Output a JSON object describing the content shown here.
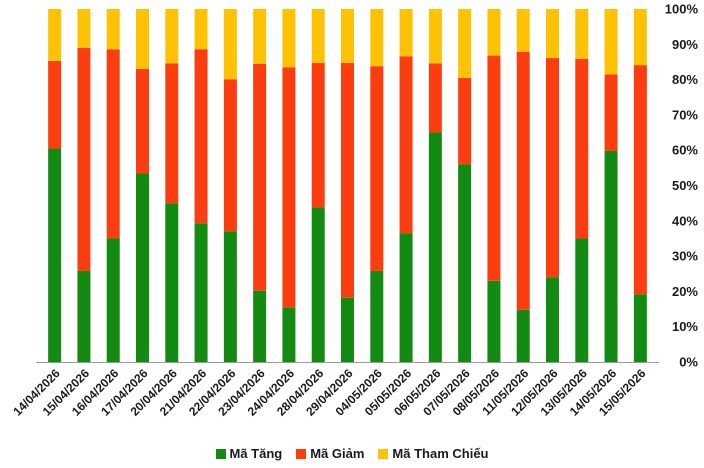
{
  "colors": {
    "tang": "#138a12",
    "giam": "#fc3d0f",
    "tham_chieu": "#fdc203"
  },
  "chart_data": {
    "type": "bar",
    "stacked": true,
    "percent": true,
    "categories": [
      "14/04/2026",
      "15/04/2026",
      "16/04/2026",
      "17/04/2026",
      "20/04/2026",
      "21/04/2026",
      "22/04/2026",
      "23/04/2026",
      "24/04/2026",
      "28/04/2026",
      "29/04/2026",
      "04/05/2026",
      "05/05/2026",
      "06/05/2026",
      "07/05/2026",
      "08/05/2026",
      "11/05/2026",
      "12/05/2026",
      "13/05/2026",
      "14/05/2026",
      "15/05/2026"
    ],
    "series": [
      {
        "name": "Mã Tăng",
        "color": "#138a12",
        "values": [
          60.5,
          25.8,
          35.0,
          53.4,
          45.0,
          39.3,
          37.0,
          20.2,
          15.5,
          43.8,
          18.2,
          25.8,
          36.5,
          65.0,
          56.0,
          23.0,
          14.8,
          24.0,
          35.0,
          59.8,
          19.2
        ]
      },
      {
        "name": "Mã Giảm",
        "color": "#fc3d0f",
        "values": [
          24.8,
          63.2,
          53.6,
          29.6,
          39.6,
          49.3,
          43.1,
          64.3,
          68.0,
          40.9,
          66.5,
          58.0,
          50.1,
          19.6,
          24.5,
          63.8,
          73.1,
          62.1,
          50.9,
          21.7,
          64.9
        ]
      },
      {
        "name": "Mã Tham Chiếu",
        "color": "#fdc203",
        "values": [
          14.7,
          11.0,
          11.4,
          17.0,
          15.4,
          11.4,
          19.9,
          15.5,
          16.5,
          15.3,
          15.3,
          16.2,
          13.4,
          15.4,
          19.5,
          13.2,
          12.1,
          13.9,
          14.1,
          18.5,
          15.9
        ]
      }
    ],
    "y_ticks": [
      "0%",
      "10%",
      "20%",
      "30%",
      "40%",
      "50%",
      "60%",
      "70%",
      "80%",
      "90%",
      "100%"
    ],
    "ylim": [
      0,
      100
    ],
    "y_axis_position": "right",
    "grid": false,
    "legend_position": "bottom"
  }
}
